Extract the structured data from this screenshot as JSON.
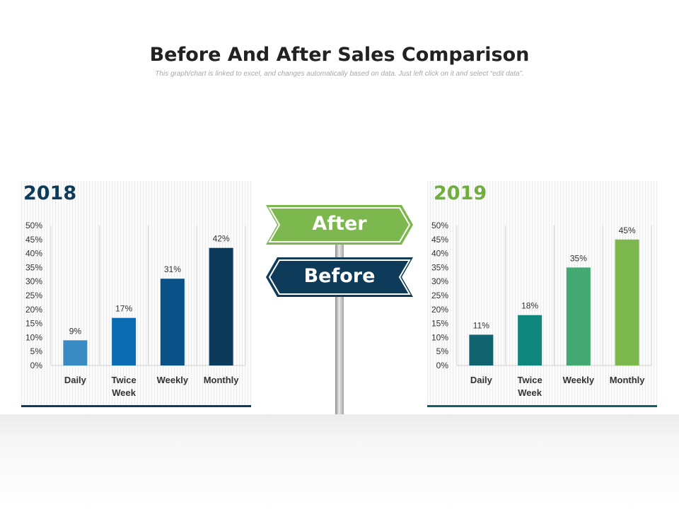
{
  "title": "Before And After Sales Comparison",
  "subtitle": "This graph/chart is linked to excel, and changes automatically based on data. Just left click on it and select “edit data”.",
  "signs": {
    "after_label": "After",
    "before_label": "Before"
  },
  "colors": {
    "after_sign": "#7cb84d",
    "before_sign": "#0f3b5a",
    "year_2018": "#0f3b5a",
    "year_2019": "#6fae3f",
    "panel_line_2018": "#0f3b5a",
    "panel_line_2019": "#0f5e6b"
  },
  "chart_data": [
    {
      "type": "bar",
      "title": "2018",
      "categories": [
        "Daily",
        "Twice\nWeek",
        "Weekly",
        "Monthly"
      ],
      "values": [
        9,
        17,
        31,
        42
      ],
      "data_labels": [
        "9%",
        "17%",
        "31%",
        "42%"
      ],
      "bar_colors": [
        "#3a8ac4",
        "#0c6cb3",
        "#0b5289",
        "#0b3a5a"
      ],
      "ylim": [
        0,
        50
      ],
      "yticks": [
        "0%",
        "5%",
        "10%",
        "15%",
        "20%",
        "25%",
        "30%",
        "35%",
        "40%",
        "45%",
        "50%"
      ],
      "grid": "vertical category separators"
    },
    {
      "type": "bar",
      "title": "2019",
      "categories": [
        "Daily",
        "Twice\nWeek",
        "Weekly",
        "Monthly"
      ],
      "values": [
        11,
        18,
        35,
        45
      ],
      "data_labels": [
        "11%",
        "18%",
        "35%",
        "45%"
      ],
      "bar_colors": [
        "#11636f",
        "#0f877f",
        "#43a872",
        "#7cb84d"
      ],
      "ylim": [
        0,
        50
      ],
      "yticks": [
        "0%",
        "5%",
        "10%",
        "15%",
        "20%",
        "25%",
        "30%",
        "35%",
        "40%",
        "45%",
        "50%"
      ],
      "grid": "vertical category separators"
    }
  ]
}
